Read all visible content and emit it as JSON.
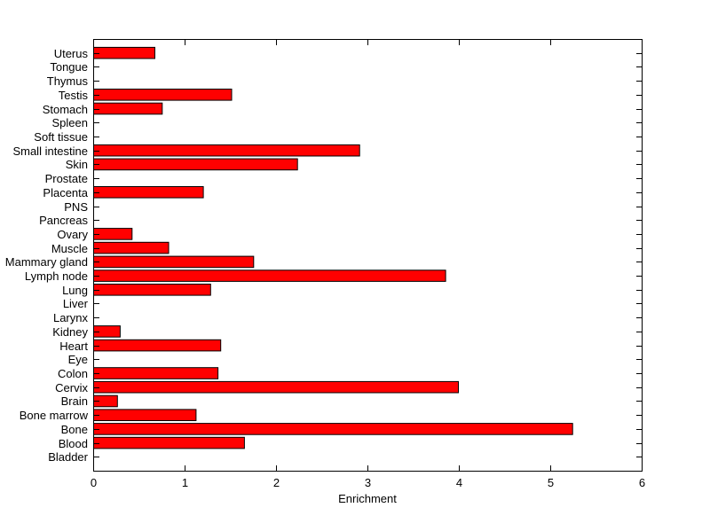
{
  "chart_data": {
    "type": "bar",
    "orientation": "horizontal",
    "order": "top-to-bottom",
    "title": "",
    "xlabel": "Enrichment",
    "ylabel": "",
    "xlim": [
      0,
      6
    ],
    "xticks": [
      "0",
      "1",
      "2",
      "3",
      "4",
      "5",
      "6"
    ],
    "grid": false,
    "legend": null,
    "bar_color": "#FF0000",
    "bar_edge_color": "#000000",
    "axis_color": "#000000",
    "background_color": "#FFFFFF",
    "categories": [
      "Uterus",
      "Tongue",
      "Thymus",
      "Testis",
      "Stomach",
      "Spleen",
      "Soft tissue",
      "Small intestine",
      "Skin",
      "Prostate",
      "Placenta",
      "PNS",
      "Pancreas",
      "Ovary",
      "Muscle",
      "Mammary gland",
      "Lymph node",
      "Lung",
      "Liver",
      "Larynx",
      "Kidney",
      "Heart",
      "Eye",
      "Colon",
      "Cervix",
      "Brain",
      "Bone marrow",
      "Bone",
      "Blood",
      "Bladder"
    ],
    "values": [
      0.67,
      0,
      0,
      1.51,
      0.75,
      0,
      0,
      2.91,
      2.23,
      0,
      1.2,
      0,
      0,
      0.42,
      0.82,
      1.75,
      3.85,
      1.28,
      0,
      0,
      0.29,
      1.39,
      0,
      1.36,
      3.99,
      0.26,
      1.12,
      5.24,
      1.65,
      0
    ]
  }
}
